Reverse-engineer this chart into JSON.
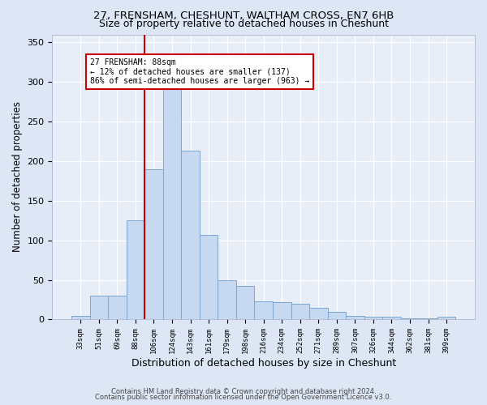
{
  "title1": "27, FRENSHAM, CHESHUNT, WALTHAM CROSS, EN7 6HB",
  "title2": "Size of property relative to detached houses in Cheshunt",
  "xlabel": "Distribution of detached houses by size in Cheshunt",
  "ylabel": "Number of detached properties",
  "footer1": "Contains HM Land Registry data © Crown copyright and database right 2024.",
  "footer2": "Contains public sector information licensed under the Open Government Licence v3.0.",
  "categories": [
    "33sqm",
    "51sqm",
    "69sqm",
    "88sqm",
    "106sqm",
    "124sqm",
    "143sqm",
    "161sqm",
    "179sqm",
    "198sqm",
    "216sqm",
    "234sqm",
    "252sqm",
    "271sqm",
    "289sqm",
    "307sqm",
    "326sqm",
    "344sqm",
    "362sqm",
    "381sqm",
    "399sqm"
  ],
  "values": [
    5,
    30,
    30,
    125,
    190,
    295,
    213,
    107,
    50,
    42,
    23,
    22,
    20,
    15,
    10,
    5,
    4,
    4,
    1,
    1,
    4
  ],
  "bar_color": "#c6d9f1",
  "bar_edge_color": "#7ba7d4",
  "highlight_line_color": "#cc0000",
  "annotation_line1": "← 12% of detached houses are smaller (137)",
  "annotation_line2": "86% of semi-detached houses are larger (963) →",
  "annotation_box_color": "#cc0000",
  "ylim": [
    0,
    360
  ],
  "yticks": [
    0,
    50,
    100,
    150,
    200,
    250,
    300,
    350
  ],
  "background_color": "#dce6f5",
  "plot_bg_color": "#e8eef8",
  "grid_color": "#ffffff",
  "title1_fontsize": 9.5,
  "title2_fontsize": 9,
  "xlabel_fontsize": 9,
  "ylabel_fontsize": 8.5
}
